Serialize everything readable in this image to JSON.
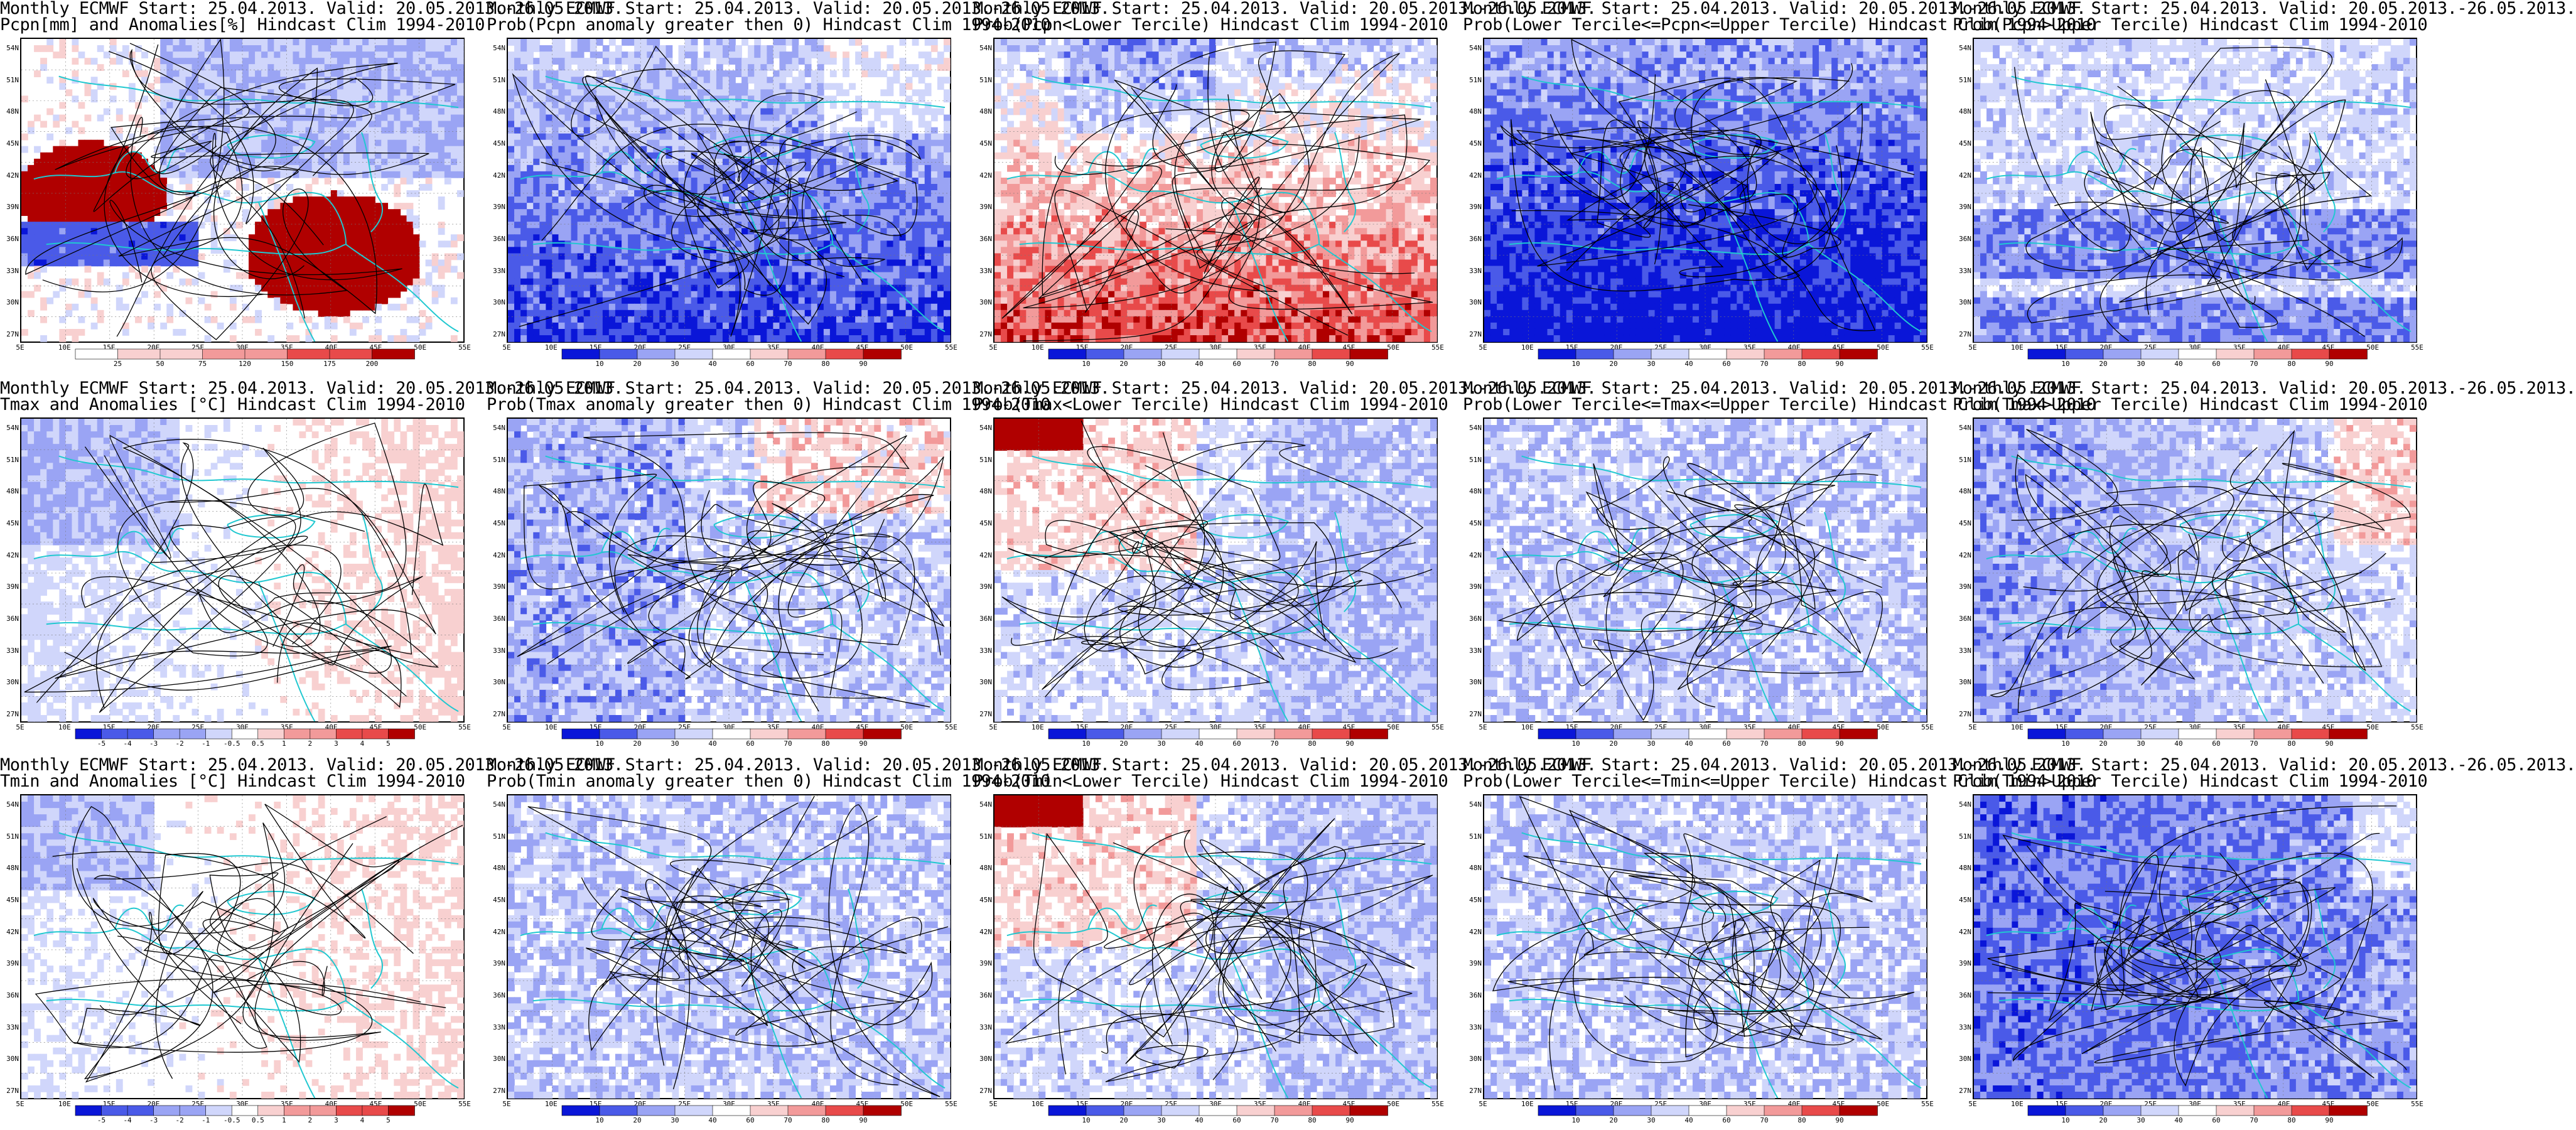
{
  "colors": {
    "deep_blue": "#0a16d8",
    "mid_blue": "#4a5ae8",
    "light_blue": "#9aa4f4",
    "pale_blue": "#d0d6fb",
    "white": "#ffffff",
    "pale_red": "#f8d0d0",
    "light_red": "#f29a9a",
    "mid_red": "#e84a4a",
    "deep_red": "#b00000",
    "coast": "#20c8d0",
    "contour": "#000000"
  },
  "axes": {
    "lat_labels": [
      "54N",
      "51N",
      "48N",
      "45N",
      "42N",
      "39N",
      "36N",
      "33N",
      "30N",
      "27N"
    ],
    "lon_labels": [
      "5E",
      "10E",
      "15E",
      "20E",
      "25E",
      "30E",
      "35E",
      "40E",
      "45E",
      "50E",
      "55E"
    ]
  },
  "colorbars": {
    "prec_anom": [
      "25",
      "50",
      "75",
      "120",
      "150",
      "175",
      "200"
    ],
    "temp_anom": [
      "-5",
      "-4",
      "-3",
      "-2",
      "-1",
      "-0.5",
      "0.5",
      "1",
      "2",
      "3",
      "4",
      "5"
    ],
    "prob": [
      "10",
      "20",
      "30",
      "40",
      "60",
      "70",
      "80",
      "90"
    ]
  },
  "panels": [
    {
      "id": "p11",
      "line1": "Monthly ECMWF Start: 25.04.2013. Valid: 20.05.2013.-26.05.2013.",
      "line2": "Pcpn[mm] and Anomalies[%] Hindcast Clim 1994-2010",
      "bar": "prec_anom",
      "scheme": "prec_anom"
    },
    {
      "id": "p12",
      "line1": "Monthly ECMWF Start: 25.04.2013. Valid: 20.05.2013.-26.05.2013.",
      "line2": "Prob(Pcpn anomaly greater then 0) Hindcast Clim 1994-2010",
      "bar": "prob",
      "scheme": "blue_south"
    },
    {
      "id": "p13",
      "line1": "Monthly ECMWF Start: 25.04.2013. Valid: 20.05.2013.-26.05.2013.",
      "line2": "Prob(Pcpn<Lower Tercile) Hindcast Clim 1994-2010",
      "bar": "prob",
      "scheme": "red_south"
    },
    {
      "id": "p14",
      "line1": "Monthly ECMWF Start: 25.04.2013. Valid: 20.05.2013.-26.05.2013.",
      "line2": "Prob(Lower Tercile<=Pcpn<=Upper Tercile) Hindcast Clim 1994-2010",
      "bar": "prob",
      "scheme": "deep_south"
    },
    {
      "id": "p15",
      "line1": "Monthly ECMWF Start: 25.04.2013. Valid: 20.05.2013.-26.05.2013.",
      "line2": "Prob(Pcpn>Upper Tercile) Hindcast Clim 1994-2010",
      "bar": "prob",
      "scheme": "blue_band"
    },
    {
      "id": "p21",
      "line1": "Monthly ECMWF Start: 25.04.2013. Valid: 20.05.2013.-26.05.2013.",
      "line2": "Tmax and Anomalies [°C] Hindcast Clim 1994-2010",
      "bar": "temp_anom",
      "scheme": "temp_anom_max"
    },
    {
      "id": "p22",
      "line1": "Monthly ECMWF Start: 25.04.2013. Valid: 20.05.2013.-26.05.2013.",
      "line2": "Prob(Tmax anomaly greater then 0) Hindcast Clim 1994-2010",
      "bar": "prob",
      "scheme": "mixed"
    },
    {
      "id": "p23",
      "line1": "Monthly ECMWF Start: 25.04.2013. Valid: 20.05.2013.-26.05.2013.",
      "line2": "Prob(Tmax<Lower Tercile) Hindcast Clim 1994-2010",
      "bar": "prob",
      "scheme": "mixed_red_nw"
    },
    {
      "id": "p24",
      "line1": "Monthly ECMWF Start: 25.04.2013. Valid: 20.05.2013.-26.05.2013.",
      "line2": "Prob(Lower Tercile<=Tmax<=Upper Tercile) Hindcast Clim 1994-2010",
      "bar": "prob",
      "scheme": "blue_patchy"
    },
    {
      "id": "p25",
      "line1": "Monthly ECMWF Start: 25.04.2013. Valid: 20.05.2013.-26.05.2013.",
      "line2": "Prob(Tmax>Upper Tercile) Hindcast Clim 1994-2010",
      "bar": "prob",
      "scheme": "blue_west"
    },
    {
      "id": "p31",
      "line1": "Monthly ECMWF Start: 25.04.2013. Valid: 20.05.2013.-26.05.2013.",
      "line2": "Tmin and Anomalies [°C] Hindcast Clim 1994-2010",
      "bar": "temp_anom",
      "scheme": "temp_anom_min"
    },
    {
      "id": "p32",
      "line1": "Monthly ECMWF Start: 25.04.2013. Valid: 20.05.2013.-26.05.2013.",
      "line2": "Prob(Tmin anomaly greater then 0) Hindcast Clim 1994-2010",
      "bar": "prob",
      "scheme": "blue_patchy"
    },
    {
      "id": "p33",
      "line1": "Monthly ECMWF Start: 25.04.2013. Valid: 20.05.2013.-26.05.2013.",
      "line2": "Prob(Tmin<Lower Tercile) Hindcast Clim 1994-2010",
      "bar": "prob",
      "scheme": "mixed_red_nw"
    },
    {
      "id": "p34",
      "line1": "Monthly ECMWF Start: 25.04.2013. Valid: 20.05.2013.-26.05.2013.",
      "line2": "Prob(Lower Tercile<=Tmin<=Upper Tercile) Hindcast Clim 1994-2010",
      "bar": "prob",
      "scheme": "blue_patchy"
    },
    {
      "id": "p35",
      "line1": "Monthly ECMWF Start: 25.04.2013. Valid: 20.05.2013.-26.05.2013.",
      "line2": "Prob(Tmin>Upper Tercile) Hindcast Clim 1994-2010",
      "bar": "prob",
      "scheme": "deep_blue"
    }
  ]
}
